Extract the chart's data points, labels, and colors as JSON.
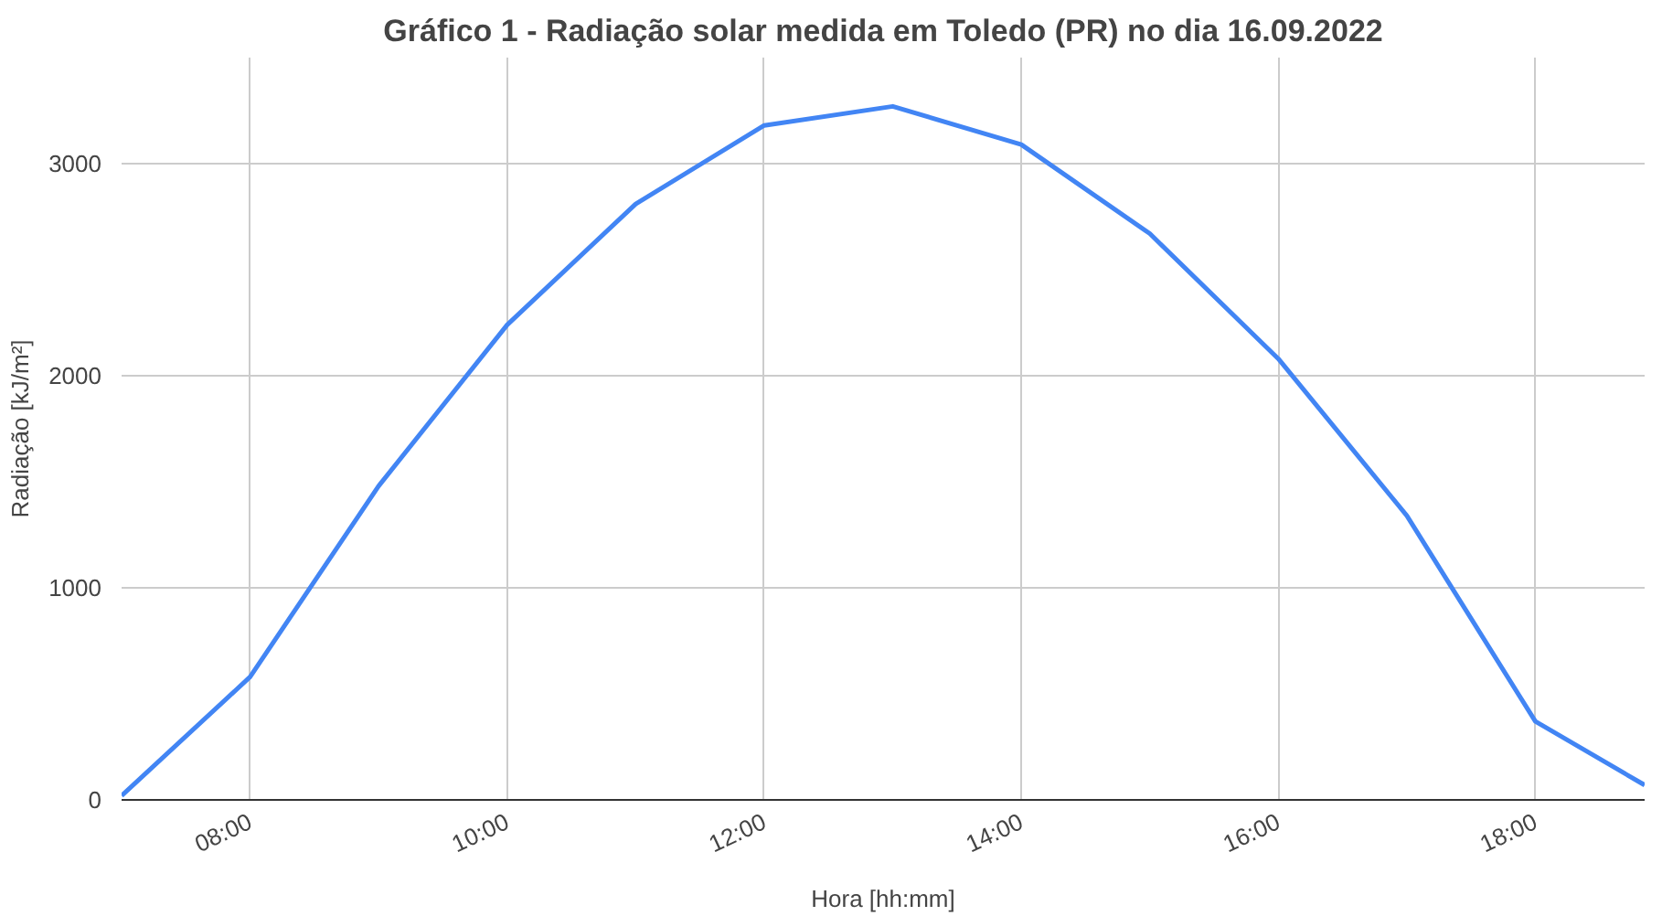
{
  "chart_data": {
    "type": "line",
    "title": "Gráfico 1 - Radiação solar medida em Toledo (PR) no dia 16.09.2022",
    "xlabel": "Hora [hh:mm]",
    "ylabel": "Radiação [kJ/m²]",
    "x": [
      7,
      8,
      9,
      10,
      11,
      12,
      13,
      14,
      15,
      16,
      17,
      18,
      18.85
    ],
    "series": [
      {
        "color": "#4285f4",
        "values": [
          20,
          580,
          1480,
          2240,
          2810,
          3180,
          3270,
          3090,
          2670,
          2080,
          1340,
          370,
          70
        ]
      }
    ],
    "xlim": [
      7,
      18.85
    ],
    "ylim": [
      0,
      3500
    ],
    "xticks": [
      {
        "value": 8,
        "label": "08:00"
      },
      {
        "value": 10,
        "label": "10:00"
      },
      {
        "value": 12,
        "label": "12:00"
      },
      {
        "value": 14,
        "label": "14:00"
      },
      {
        "value": 16,
        "label": "16:00"
      },
      {
        "value": 18,
        "label": "18:00"
      }
    ],
    "yticks": [
      0,
      1000,
      2000,
      3000
    ],
    "grid": true,
    "marker": "none",
    "line_style": "solid"
  }
}
